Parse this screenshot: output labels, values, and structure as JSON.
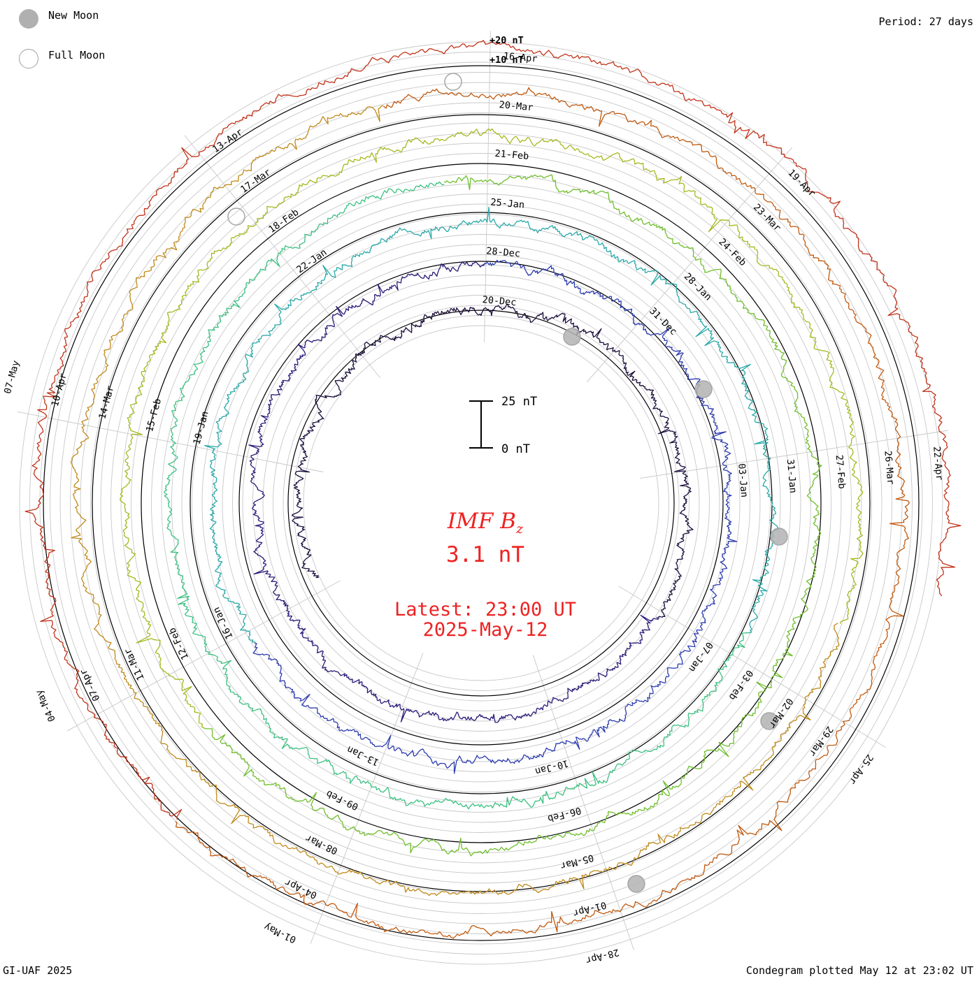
{
  "header": {
    "period_label": "Period: 27 days"
  },
  "legend": [
    {
      "label": "New Moon",
      "style": "filled",
      "color": "#b0b0b0"
    },
    {
      "label": "Full Moon",
      "style": "open",
      "color": "#a0a0a0"
    }
  ],
  "center": {
    "title": "IMF B",
    "title_sub": "z",
    "value": "3.1 nT",
    "latest_line1": "Latest: 23:00 UT",
    "latest_line2": "2025-May-12",
    "color": "#ee2222"
  },
  "scale_bar": {
    "top_label": "25 nT",
    "bottom_label": "0 nT"
  },
  "footer": {
    "left": "GI-UAF 2025",
    "right": "Condegram plotted May 12 at 23:02 UT"
  },
  "chart_data": {
    "type": "condegram",
    "period_days": 27,
    "quantity": "IMF Bz",
    "units": "nT",
    "reference_labels": [
      "+20 nT",
      "+10 nT"
    ],
    "rotations": [
      {
        "color": "#1c0f3e",
        "date_labels": [
          "20-Dec"
        ]
      },
      {
        "color": "#2a1b78",
        "date_labels": [
          "28-Dec",
          "31-Dec",
          "03-Jan",
          "07-Jan",
          "10-Jan",
          "13-Jan",
          "16-Jan",
          "19-Jan",
          "22-Jan"
        ]
      },
      {
        "color": "#2c3cb0",
        "date_labels": [
          "25-Jan",
          "28-Jan",
          "31-Jan",
          "03-Feb",
          "06-Feb",
          "09-Feb",
          "12-Feb",
          "15-Feb",
          "18-Feb"
        ]
      },
      {
        "color": "#2aa8a8",
        "date_labels": [
          "21-Feb",
          "24-Feb",
          "27-Feb",
          "02-Mar",
          "05-Mar",
          "08-Mar",
          "11-Mar",
          "14-Mar",
          "17-Mar"
        ]
      },
      {
        "color": "#6fbe2c",
        "date_labels": [
          "20-Mar",
          "23-Mar",
          "26-Mar",
          "29-Mar",
          "01-Apr",
          "04-Apr",
          "07-Apr",
          "10-Apr",
          "13-Apr"
        ]
      },
      {
        "color": "#b8a020",
        "date_labels": [
          "16-Apr",
          "19-Apr",
          "22-Apr",
          "25-Apr",
          "28-Apr",
          "01-May",
          "04-May",
          "07-May"
        ]
      },
      {
        "color": "#c0331a",
        "date_labels": []
      }
    ],
    "series_colors": [
      "#1c0f3e",
      "#2a1b78",
      "#2c3cb0",
      "#2aa8a8",
      "#3cc080",
      "#6fbe2c",
      "#a6b820",
      "#c08a1a",
      "#c05a10",
      "#c0331a"
    ]
  }
}
